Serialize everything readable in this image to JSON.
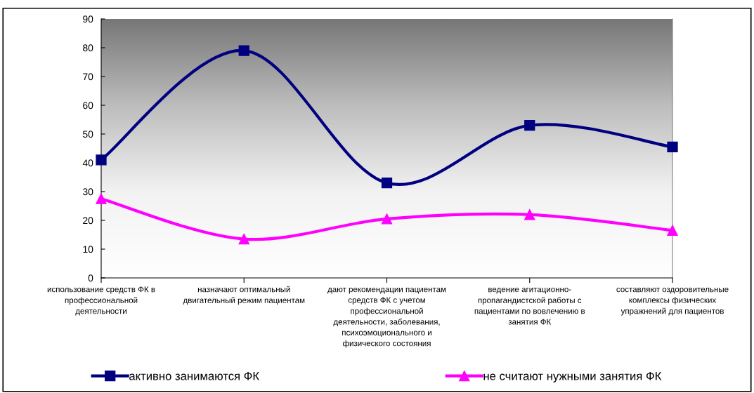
{
  "chart_data": {
    "type": "line",
    "categories": [
      "использование средств ФК в\nпрофессиональной\nдеятельности",
      "назначают оптимальный\nдвигательный режим пациентам",
      "дают рекомендации пациентам\nсредств ФК с учетом\nпрофессиональной\nдеятельности, заболевания,\nпсихоэмоционального и\nфизического состояния",
      "ведение агитационно-\nпропагандистской работы с\nпациентами по вовлечению в\nзанятия ФК",
      "составляют оздоровительные\nкомплексы физических\nупражнений для пациентов"
    ],
    "series": [
      {
        "name": "активно занимаются ФК",
        "color": "#000080",
        "marker": "square",
        "values": [
          41,
          79,
          33,
          53,
          45.5
        ]
      },
      {
        "name": "не считают нужными занятия ФК",
        "color": "#ff00ff",
        "marker": "triangle",
        "values": [
          27.5,
          13.5,
          20.5,
          22,
          16.5
        ]
      }
    ],
    "ylim": [
      0,
      90
    ],
    "yticks": [
      0,
      10,
      20,
      30,
      40,
      50,
      60,
      70,
      80,
      90
    ],
    "grid": false,
    "legend": "bottom",
    "line_style": "solid"
  }
}
